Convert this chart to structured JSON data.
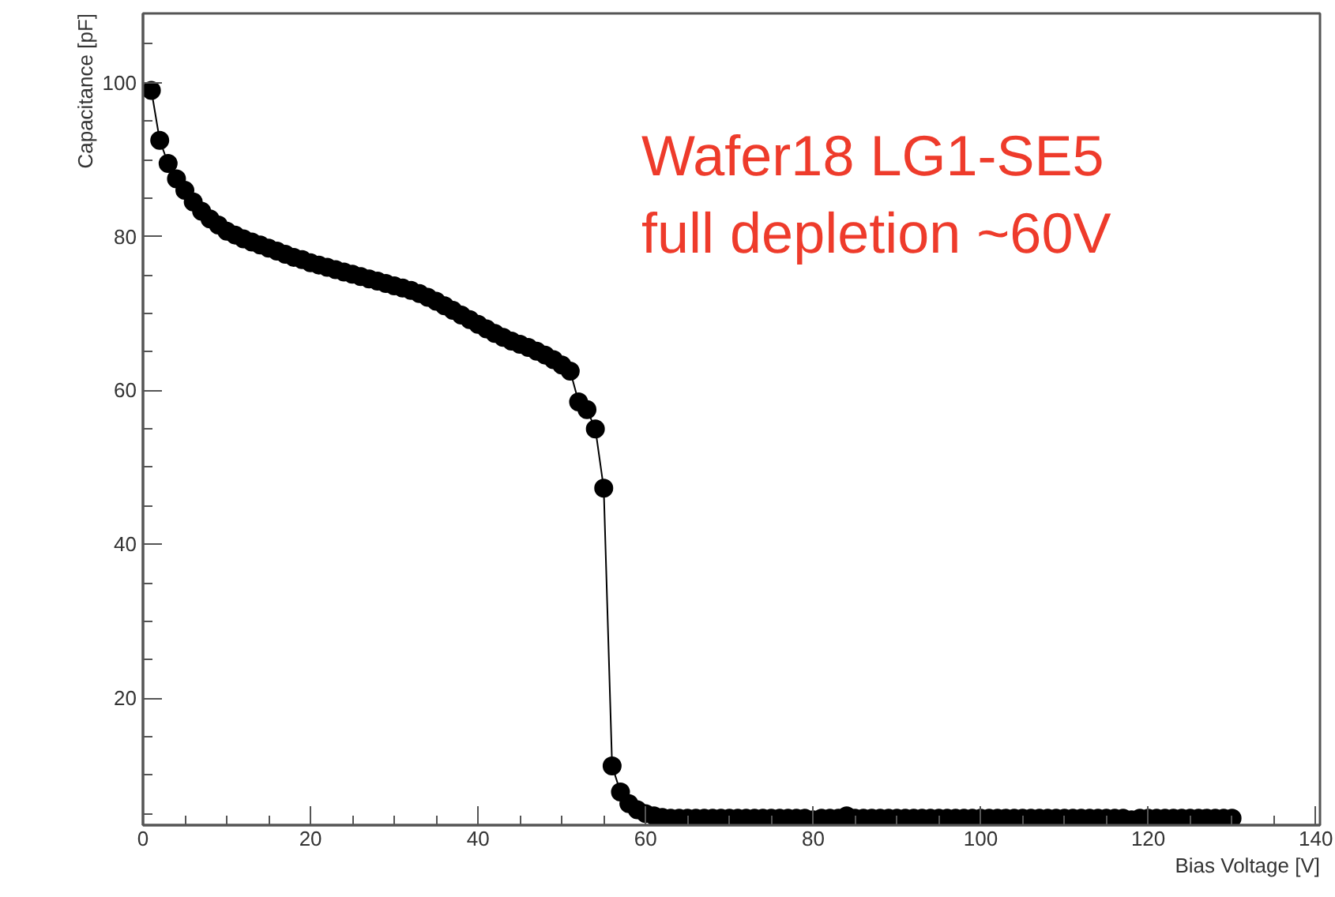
{
  "chart_data": {
    "type": "line",
    "xlabel": "Bias Voltage [V]",
    "ylabel": "Capacitance [pF]",
    "annotations": [
      "Wafer18 LG1-SE5",
      "full depletion ~60V"
    ],
    "xlim": [
      0,
      140.5
    ],
    "ylim": [
      3.5,
      109
    ],
    "xticks": [
      0,
      20,
      40,
      60,
      80,
      100,
      120,
      140
    ],
    "yticks": [
      20,
      40,
      60,
      80,
      100
    ],
    "grid": false,
    "marker": "circle",
    "line_style": "solid",
    "series": [
      {
        "color": "#000000",
        "x": [
          1,
          2,
          3,
          4,
          5,
          6,
          7,
          8,
          9,
          10,
          11,
          12,
          13,
          14,
          15,
          16,
          17,
          18,
          19,
          20,
          21,
          22,
          23,
          24,
          25,
          26,
          27,
          28,
          29,
          30,
          31,
          32,
          33,
          34,
          35,
          36,
          37,
          38,
          39,
          40,
          41,
          42,
          43,
          44,
          45,
          46,
          47,
          48,
          49,
          50,
          51,
          52,
          53,
          54,
          55,
          56,
          57,
          58,
          59,
          60,
          61,
          62,
          63,
          64,
          65,
          66,
          67,
          68,
          69,
          70,
          71,
          72,
          73,
          74,
          75,
          76,
          77,
          78,
          79,
          80,
          81,
          82,
          83,
          84,
          85,
          86,
          87,
          88,
          89,
          90,
          91,
          92,
          93,
          94,
          95,
          96,
          97,
          98,
          99,
          100,
          101,
          102,
          103,
          104,
          105,
          106,
          107,
          108,
          109,
          110,
          111,
          112,
          113,
          114,
          115,
          116,
          117,
          118,
          119,
          120,
          121,
          122,
          123,
          124,
          125,
          126,
          127,
          128,
          129,
          130
        ],
        "values": [
          99,
          92.5,
          89.5,
          87.5,
          86,
          84.5,
          83.3,
          82.3,
          81.5,
          80.7,
          80.2,
          79.7,
          79.3,
          78.9,
          78.5,
          78.1,
          77.7,
          77.3,
          77,
          76.6,
          76.3,
          76,
          75.7,
          75.4,
          75.1,
          74.8,
          74.5,
          74.2,
          73.9,
          73.6,
          73.3,
          73,
          72.6,
          72.1,
          71.6,
          71,
          70.4,
          69.8,
          69.2,
          68.6,
          68,
          67.4,
          66.9,
          66.4,
          66,
          65.6,
          65.1,
          64.6,
          64,
          63.3,
          62.5,
          58.5,
          57.5,
          55,
          47.3,
          11.2,
          7.8,
          6.3,
          5.5,
          5,
          4.7,
          4.5,
          4.4,
          4.4,
          4.4,
          4.4,
          4.4,
          4.4,
          4.4,
          4.4,
          4.4,
          4.4,
          4.4,
          4.4,
          4.4,
          4.4,
          4.4,
          4.4,
          4.4,
          4.2,
          4.4,
          4.4,
          4.4,
          4.7,
          4.4,
          4.4,
          4.4,
          4.4,
          4.4,
          4.4,
          4.4,
          4.4,
          4.4,
          4.4,
          4.4,
          4.4,
          4.4,
          4.4,
          4.4,
          4.4,
          4.4,
          4.4,
          4.4,
          4.4,
          4.4,
          4.4,
          4.4,
          4.4,
          4.4,
          4.4,
          4.4,
          4.4,
          4.4,
          4.4,
          4.4,
          4.4,
          4.4,
          4.2,
          4.4,
          4.4,
          4.4,
          4.4,
          4.4,
          4.4,
          4.4,
          4.4,
          4.4,
          4.4,
          4.4,
          4.4
        ]
      }
    ]
  }
}
